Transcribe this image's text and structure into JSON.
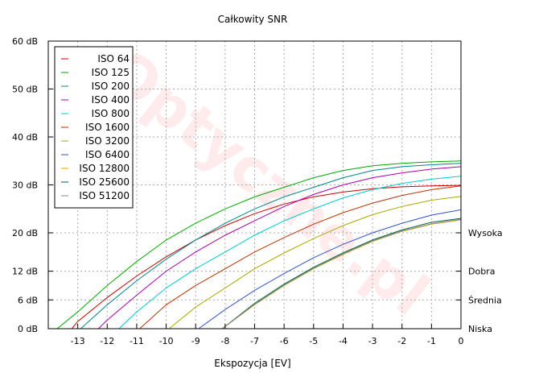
{
  "chart_data": {
    "type": "line",
    "title": "Całkowity SNR",
    "xlabel": "Ekspozycja [EV]",
    "ylabel": "",
    "xlim": [
      -14,
      0
    ],
    "ylim": [
      0,
      60
    ],
    "grid": true,
    "legend_position": "top-left",
    "x_ticks": [
      -13,
      -12,
      -11,
      -10,
      -9,
      -8,
      -7,
      -6,
      -5,
      -4,
      -3,
      -2,
      -1,
      0
    ],
    "x_tick_labels": [
      "-13",
      "-12",
      "-11",
      "-10",
      "-9",
      "-8",
      "-7",
      "-6",
      "-5",
      "-4",
      "-3",
      "-2",
      "-1",
      "0"
    ],
    "y_ticks": [
      0,
      6,
      12,
      20,
      30,
      40,
      50,
      60
    ],
    "y_tick_labels": [
      "0 dB",
      "6 dB",
      "12 dB",
      "20 dB",
      "30 dB",
      "40 dB",
      "50 dB",
      "60 dB"
    ],
    "y2_ticks": [
      0,
      6,
      12,
      20
    ],
    "y2_tick_labels": [
      "Niska",
      "Średnia",
      "Dobra",
      "Wysoka"
    ],
    "watermark": "Optyczne.pl",
    "series": [
      {
        "name": "ISO 64",
        "color": "#cc0000",
        "x": [
          -13.2,
          -13,
          -12,
          -11,
          -10,
          -9,
          -8,
          -7,
          -6,
          -5,
          -4,
          -3,
          -2,
          -1,
          0
        ],
        "y": [
          0,
          1.5,
          6.5,
          11,
          15,
          18.5,
          21.5,
          24,
          26,
          27.5,
          28.5,
          29.2,
          29.6,
          29.8,
          29.9
        ]
      },
      {
        "name": "ISO 125",
        "color": "#00aa00",
        "x": [
          -13.7,
          -13,
          -12,
          -11,
          -10,
          -9,
          -8,
          -7,
          -6,
          -5,
          -4,
          -3,
          -2,
          -1,
          0
        ],
        "y": [
          0,
          3.5,
          9,
          14,
          18.5,
          22,
          25,
          27.5,
          29.5,
          31.5,
          33,
          34,
          34.5,
          34.8,
          35
        ]
      },
      {
        "name": "ISO 200",
        "color": "#008888",
        "x": [
          -12.9,
          -12,
          -11,
          -10,
          -9,
          -8,
          -7,
          -6,
          -5,
          -4,
          -3,
          -2,
          -1,
          0
        ],
        "y": [
          0,
          5,
          10,
          14.5,
          18.5,
          22,
          25,
          27.5,
          29.5,
          31.5,
          33,
          33.8,
          34.2,
          34.5
        ]
      },
      {
        "name": "ISO 400",
        "color": "#aa00aa",
        "x": [
          -12.3,
          -12,
          -11,
          -10,
          -9,
          -8,
          -7,
          -6,
          -5,
          -4,
          -3,
          -2,
          -1,
          0
        ],
        "y": [
          0,
          1.8,
          7,
          12,
          16,
          19.5,
          22.5,
          25.5,
          28,
          30,
          31.5,
          32.5,
          33.3,
          33.8
        ]
      },
      {
        "name": "ISO 800",
        "color": "#00cccc",
        "x": [
          -11.6,
          -11,
          -10,
          -9,
          -8,
          -7,
          -6,
          -5,
          -4,
          -3,
          -2,
          -1,
          0
        ],
        "y": [
          0,
          3.5,
          8.5,
          12.5,
          16,
          19.5,
          22.5,
          25,
          27.3,
          29,
          30.3,
          31.2,
          31.8
        ]
      },
      {
        "name": "ISO 1600",
        "color": "#bb3300",
        "x": [
          -10.9,
          -10,
          -9,
          -8,
          -7,
          -6,
          -5,
          -4,
          -3,
          -2,
          -1,
          0
        ],
        "y": [
          0,
          5,
          9,
          12.5,
          16,
          19,
          21.8,
          24.2,
          26.2,
          27.8,
          29,
          29.8
        ]
      },
      {
        "name": "ISO 3200",
        "color": "#aaaa00",
        "x": [
          -9.9,
          -9,
          -8,
          -7,
          -6,
          -5,
          -4,
          -3,
          -2,
          -1,
          0
        ],
        "y": [
          0,
          4.5,
          8.5,
          12.5,
          15.8,
          18.8,
          21.5,
          23.8,
          25.5,
          26.8,
          27.6
        ]
      },
      {
        "name": "ISO 6400",
        "color": "#3355cc",
        "x": [
          -8.9,
          -8,
          -7,
          -6,
          -5,
          -4,
          -3,
          -2,
          -1,
          0
        ],
        "y": [
          0,
          4,
          8,
          11.5,
          14.8,
          17.6,
          20,
          22,
          23.7,
          24.8
        ]
      },
      {
        "name": "ISO 12800",
        "color": "#ddaa00",
        "x": [
          -8.1,
          -7,
          -6,
          -5,
          -4,
          -3,
          -2,
          -1,
          0
        ],
        "y": [
          0,
          5,
          9,
          12.5,
          15.5,
          18.2,
          20.3,
          21.8,
          22.7
        ]
      },
      {
        "name": "ISO 25600",
        "color": "#006644",
        "x": [
          -8.1,
          -7,
          -6,
          -5,
          -4,
          -3,
          -2,
          -1,
          0
        ],
        "y": [
          0,
          5.3,
          9.3,
          12.8,
          15.8,
          18.5,
          20.6,
          22.2,
          23.0
        ]
      },
      {
        "name": "ISO 51200",
        "color": "#888888",
        "x": [
          -8.1,
          -7,
          -6,
          -5,
          -4,
          -3,
          -2,
          -1,
          0
        ],
        "y": [
          0,
          5.1,
          9.1,
          12.6,
          15.6,
          18.3,
          20.4,
          21.9,
          22.8
        ]
      }
    ]
  }
}
